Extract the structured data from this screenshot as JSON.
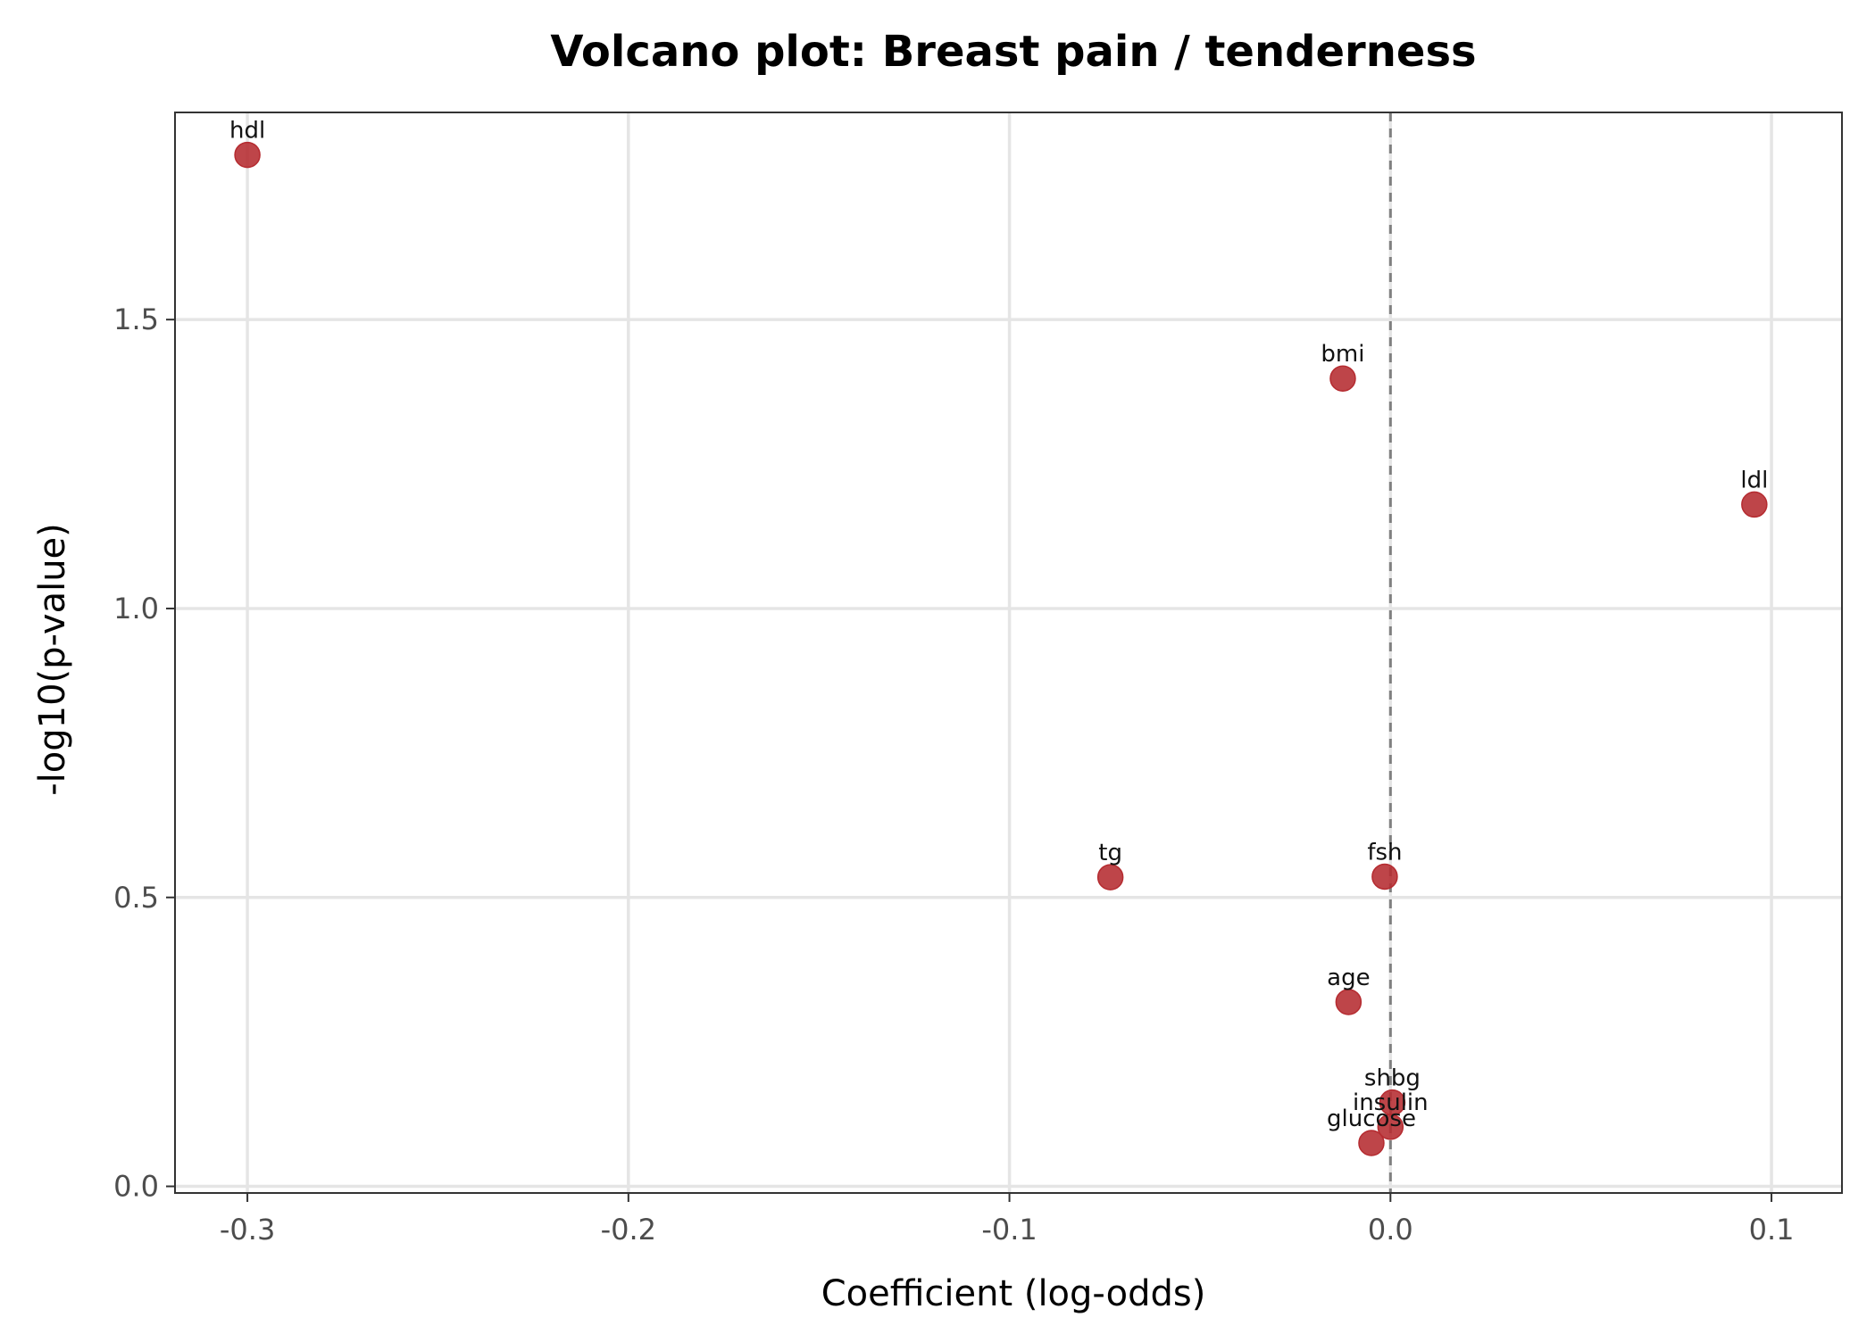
{
  "chart_data": {
    "type": "scatter",
    "title": "Volcano plot: Breast pain / tenderness",
    "xlabel": "Coefficient (log-odds)",
    "ylabel": "-log10(p-value)",
    "xlim": [
      -0.319,
      0.1185
    ],
    "ylim": [
      -0.0115,
      1.8585
    ],
    "xticks": [
      -0.3,
      -0.2,
      -0.1,
      0.0,
      0.1
    ],
    "xtick_labels": [
      "-0.3",
      "-0.2",
      "-0.1",
      "0.0",
      "0.1"
    ],
    "yticks": [
      0.0,
      0.5,
      1.0,
      1.5
    ],
    "ytick_labels": [
      "0.0",
      "0.5",
      "1.0",
      "1.5"
    ],
    "grid": true,
    "legend": "none",
    "reference_line_x": 0.0,
    "point_color": "#b52b30",
    "points": [
      {
        "label": "hdl",
        "x": -0.3,
        "y": 1.785
      },
      {
        "label": "bmi",
        "x": -0.0125,
        "y": 1.398
      },
      {
        "label": "ldl",
        "x": 0.0955,
        "y": 1.18
      },
      {
        "label": "tg",
        "x": -0.0735,
        "y": 0.535
      },
      {
        "label": "fsh",
        "x": -0.0015,
        "y": 0.536
      },
      {
        "label": "age",
        "x": -0.011,
        "y": 0.319
      },
      {
        "label": "shbg",
        "x": 0.0005,
        "y": 0.145
      },
      {
        "label": "insulin",
        "x": 0.0,
        "y": 0.103
      },
      {
        "label": "glucose",
        "x": -0.005,
        "y": 0.075
      }
    ]
  }
}
